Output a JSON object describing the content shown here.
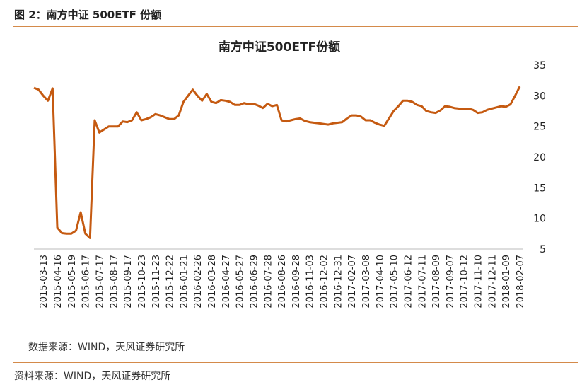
{
  "header": {
    "title": "图 2：南方中证 500ETF 份额"
  },
  "chart_data": {
    "type": "line",
    "title": "南方中证500ETF份额",
    "categories": [
      null,
      null,
      "2015-03-13",
      null,
      null,
      "2015-04-16",
      null,
      null,
      "2015-05-19",
      null,
      null,
      "2015-06-17",
      null,
      null,
      "2015-07-17",
      null,
      null,
      "2015-08-17",
      null,
      null,
      "2015-09-17",
      null,
      null,
      "2015-10-23",
      null,
      null,
      "2015-11-23",
      null,
      null,
      "2015-12-22",
      null,
      null,
      "2016-01-21",
      null,
      null,
      "2016-02-26",
      null,
      null,
      "2016-03-28",
      null,
      null,
      "2016-04-27",
      null,
      null,
      "2016-05-27",
      null,
      null,
      "2016-06-29",
      null,
      null,
      "2016-07-28",
      null,
      null,
      "2016-08-26",
      null,
      null,
      "2016-09-28",
      null,
      null,
      "2016-11-03",
      null,
      null,
      "2016-12-02",
      null,
      null,
      "2016-12-31",
      null,
      null,
      "2017-02-07",
      null,
      null,
      "2017-03-08",
      null,
      null,
      "2017-04-10",
      null,
      null,
      "2017-05-10",
      null,
      null,
      "2017-06-12",
      null,
      null,
      "2017-07-11",
      null,
      null,
      "2017-08-09",
      null,
      null,
      "2017-09-07",
      null,
      null,
      "2017-10-12",
      null,
      null,
      "2017-11-10",
      null,
      null,
      "2017-12-11",
      null,
      null,
      "2018-01-09",
      null,
      null,
      "2018-02-07"
    ],
    "series": [
      {
        "name": "南方中证500ETF份额",
        "color": "#c55a11",
        "values": [
          31.3,
          31,
          30,
          29.2,
          31.2,
          8.5,
          7.6,
          7.5,
          7.5,
          8,
          11,
          7.5,
          6.8,
          26,
          24,
          24.5,
          25,
          25,
          25,
          25.8,
          25.7,
          26,
          27.3,
          26,
          26.2,
          26.5,
          27,
          26.8,
          26.5,
          26.2,
          26.2,
          26.8,
          29,
          30,
          31,
          30,
          29.2,
          30.3,
          29,
          28.8,
          29.3,
          29.2,
          29,
          28.5,
          28.5,
          28.8,
          28.6,
          28.7,
          28.4,
          28,
          28.7,
          28.3,
          28.5,
          26,
          25.8,
          26,
          26.2,
          26.3,
          25.9,
          25.7,
          25.6,
          25.5,
          25.4,
          25.3,
          25.5,
          25.6,
          25.7,
          26.3,
          26.8,
          26.8,
          26.6,
          26,
          26,
          25.6,
          25.3,
          25.1,
          26.3,
          27.5,
          28.3,
          29.2,
          29.2,
          29,
          28.5,
          28.3,
          27.5,
          27.3,
          27.2,
          27.6,
          28.3,
          28.2,
          28,
          27.9,
          27.8,
          27.9,
          27.7,
          27.2,
          27.3,
          27.7,
          27.9,
          28.1,
          28.3,
          28.2,
          28.6,
          30,
          31.5
        ]
      }
    ],
    "ylim": [
      5,
      35
    ],
    "yticks": [
      5,
      10,
      15,
      20,
      25,
      30,
      35
    ],
    "note": "数据来源：WIND，天风证券研究所"
  },
  "footer": {
    "source": "资料来源：WIND，天风证券研究所"
  }
}
